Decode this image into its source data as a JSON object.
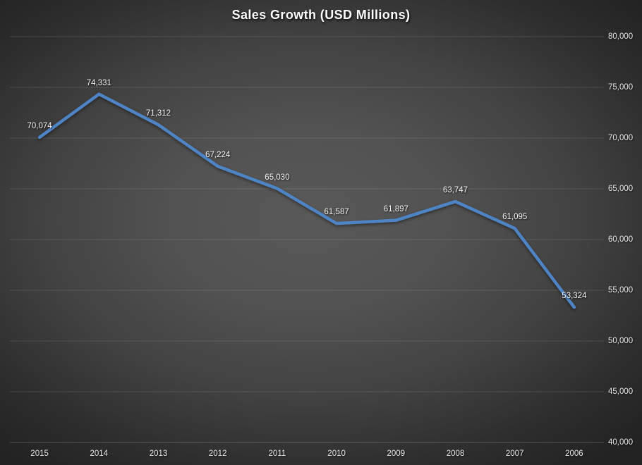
{
  "chart_data": {
    "type": "line",
    "title": "Sales Growth (USD Millions)",
    "categories": [
      "2015",
      "2014",
      "2013",
      "2012",
      "2011",
      "2010",
      "2009",
      "2008",
      "2007",
      "2006"
    ],
    "values": [
      70074,
      74331,
      71312,
      67224,
      65030,
      61587,
      61897,
      63747,
      61095,
      53324
    ],
    "data_labels": [
      "70,074",
      "74,331",
      "71,312",
      "67,224",
      "65,030",
      "61,587",
      "61,897",
      "63,747",
      "61,095",
      "53,324"
    ],
    "xlabel": "",
    "ylabel": "",
    "ylim": [
      40000,
      80000
    ],
    "y_ticks": [
      40000,
      45000,
      50000,
      55000,
      60000,
      65000,
      70000,
      75000,
      80000
    ],
    "y_tick_labels": [
      "40,000",
      "45,000",
      "50,000",
      "55,000",
      "60,000",
      "65,000",
      "70,000",
      "75,000",
      "80,000"
    ],
    "y_axis_side": "right",
    "grid": true,
    "legend_position": "none",
    "colors": {
      "line": "#4e84c4",
      "gridline": "rgba(255,255,255,0.12)",
      "axis_line": "rgba(255,255,255,0.20)",
      "title_text": "#ffffff",
      "label_text": "#f2f2f2",
      "axis_text": "#e8e8e8",
      "background_center": "#595959",
      "background_edge": "#232323"
    }
  }
}
